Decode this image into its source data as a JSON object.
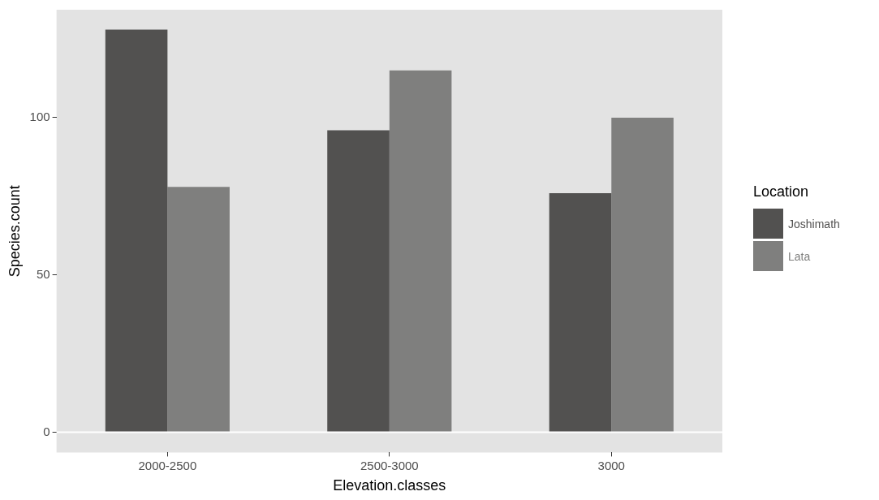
{
  "chart_data": {
    "type": "bar",
    "xlabel": "Elevation.classes",
    "ylabel": "Species.count",
    "legend_title": "Location",
    "categories": [
      "2000-2500",
      "2500-3000",
      "3000"
    ],
    "series": [
      {
        "name": "Joshimath",
        "color": "#525150",
        "values": [
          128,
          96,
          76
        ]
      },
      {
        "name": "Lata",
        "color": "#7f7f7e",
        "values": [
          78,
          115,
          100
        ]
      }
    ],
    "ylim": [
      -6.4,
      134.3
    ],
    "yticks": [
      0,
      50,
      100
    ],
    "grid": false,
    "legend": "right",
    "ref_lines": [
      {
        "axis": "y",
        "value": 0,
        "color": "#ffffff"
      }
    ]
  }
}
